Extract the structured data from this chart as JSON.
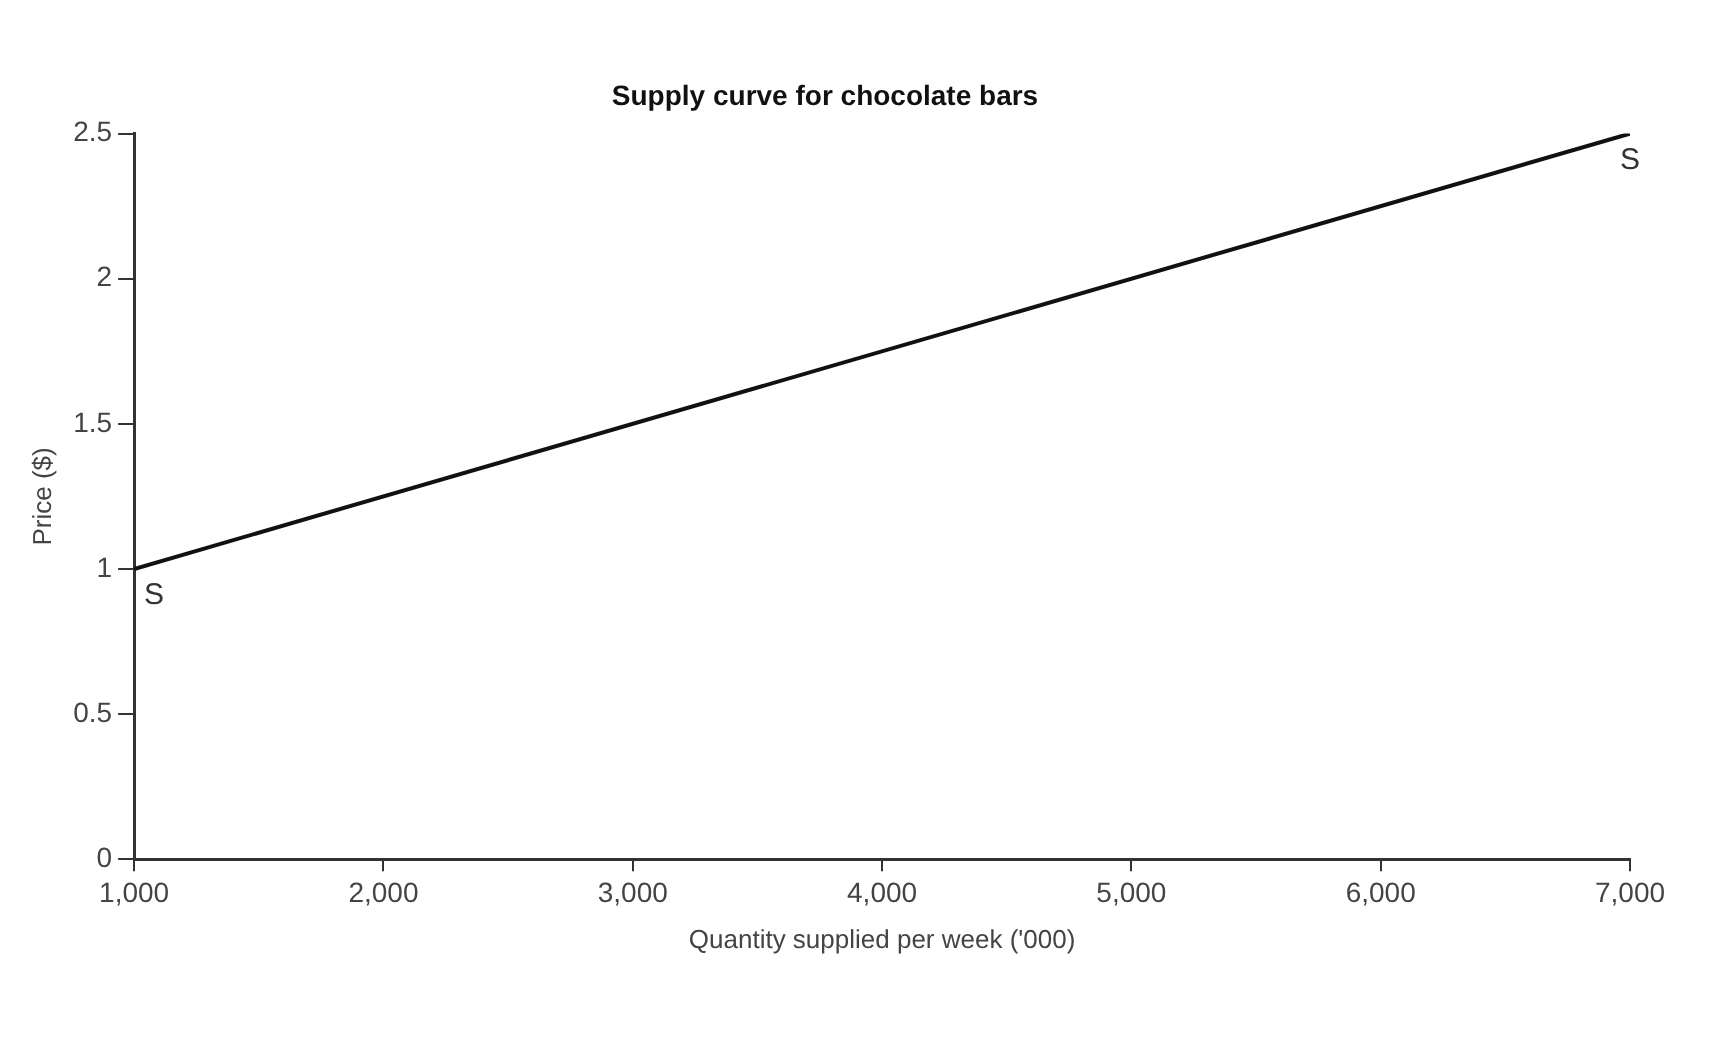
{
  "chart_data": {
    "type": "line",
    "title": "Supply curve for chocolate bars",
    "xlabel": "Quantity supplied per week ('000)",
    "ylabel": "Price ($)",
    "x": [
      1000,
      7000
    ],
    "series": [
      {
        "color": "#111111",
        "values": [
          1,
          2.5
        ]
      }
    ],
    "xlim": [
      1000,
      7000
    ],
    "xticks": [
      {
        "value": 1000,
        "label": "1,000"
      },
      {
        "value": 2000,
        "label": "2,000"
      },
      {
        "value": 3000,
        "label": "3,000"
      },
      {
        "value": 4000,
        "label": "4,000"
      },
      {
        "value": 5000,
        "label": "5,000"
      },
      {
        "value": 6000,
        "label": "6,000"
      },
      {
        "value": 7000,
        "label": "7,000"
      }
    ],
    "ylim": [
      0,
      2.5
    ],
    "yticks": [
      0,
      0.5,
      1,
      1.5,
      2,
      2.5
    ],
    "annotations": [
      {
        "text": "S",
        "x": 1000,
        "y": 1
      },
      {
        "text": "S",
        "x": 7000,
        "y": 2.5
      }
    ],
    "grid": false,
    "legend": false,
    "marker": "none",
    "line_style": "solid"
  }
}
